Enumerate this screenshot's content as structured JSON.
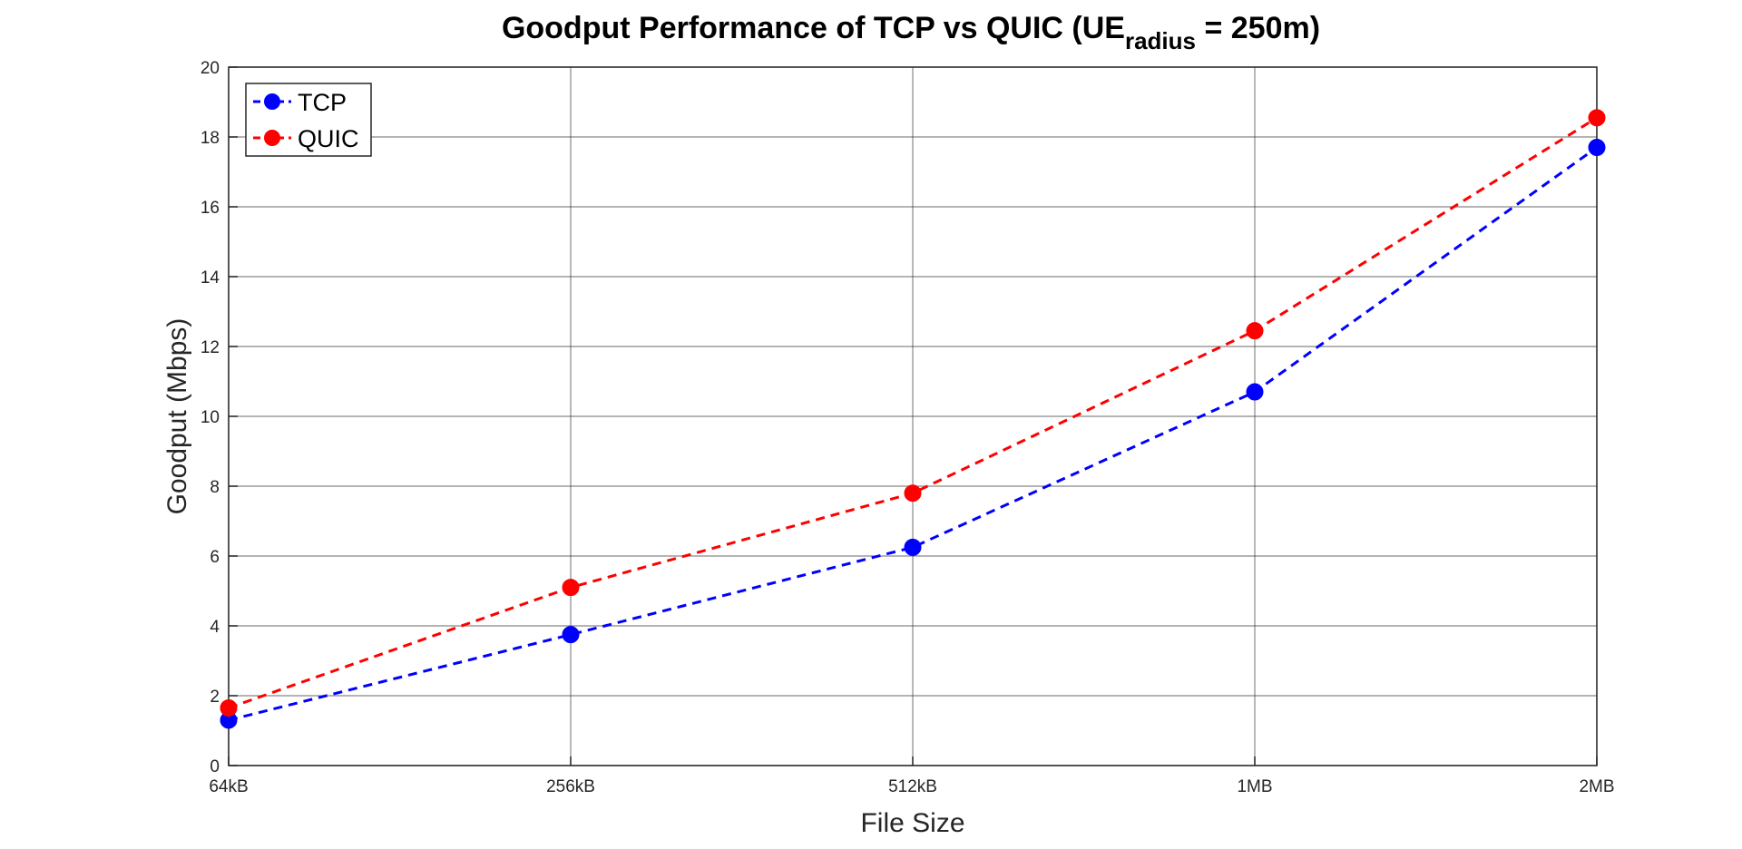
{
  "chart_data": {
    "type": "line",
    "title": {
      "prefix": "Goodput Performance of TCP vs QUIC (UE",
      "subscript": "radius",
      "suffix": " = 250m)"
    },
    "xlabel": "File Size",
    "ylabel": "Goodput (Mbps)",
    "categories": [
      "64kB",
      "256kB",
      "512kB",
      "1MB",
      "2MB"
    ],
    "ylim": [
      0,
      20
    ],
    "yticks": [
      "0",
      "2",
      "4",
      "6",
      "8",
      "10",
      "12",
      "14",
      "16",
      "18",
      "20"
    ],
    "grid": true,
    "legend_position": "top-left",
    "series": [
      {
        "name": "TCP",
        "color": "#0000ff",
        "values": [
          1.3,
          3.75,
          6.25,
          10.7,
          17.7
        ]
      },
      {
        "name": "QUIC",
        "color": "#ff0000",
        "values": [
          1.65,
          5.1,
          7.8,
          12.45,
          18.55
        ]
      }
    ]
  }
}
